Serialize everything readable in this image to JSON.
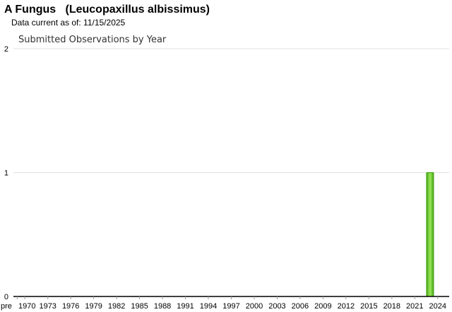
{
  "header": {
    "title": "A Fungus   (Leucopaxillus albissimus)",
    "as_of": "Data current as of: 11/15/2025"
  },
  "chart_data": {
    "type": "bar",
    "title": "Submitted Observations by Year",
    "xlabel": "",
    "ylabel": "",
    "categories": [
      "pre",
      "1970",
      "1971",
      "1972",
      "1973",
      "1974",
      "1975",
      "1976",
      "1977",
      "1978",
      "1979",
      "1980",
      "1981",
      "1982",
      "1983",
      "1984",
      "1985",
      "1986",
      "1987",
      "1988",
      "1989",
      "1990",
      "1991",
      "1992",
      "1993",
      "1994",
      "1995",
      "1996",
      "1997",
      "1998",
      "1999",
      "2000",
      "2001",
      "2002",
      "2003",
      "2004",
      "2005",
      "2006",
      "2007",
      "2008",
      "2009",
      "2010",
      "2011",
      "2012",
      "2013",
      "2014",
      "2015",
      "2016",
      "2017",
      "2018",
      "2019",
      "2020",
      "2021",
      "2022",
      "2023",
      "2024",
      "2025"
    ],
    "tick_labels": [
      "pre",
      "1970",
      "1973",
      "1976",
      "1979",
      "1982",
      "1985",
      "1988",
      "1991",
      "1994",
      "1997",
      "2000",
      "2003",
      "2006",
      "2009",
      "2012",
      "2015",
      "2018",
      "2021",
      "2024"
    ],
    "values": {
      "2023": 1
    },
    "ylim": [
      0,
      2
    ],
    "yticks": [
      0,
      1,
      2
    ],
    "grid": true,
    "bar_color": "#66cc22"
  }
}
